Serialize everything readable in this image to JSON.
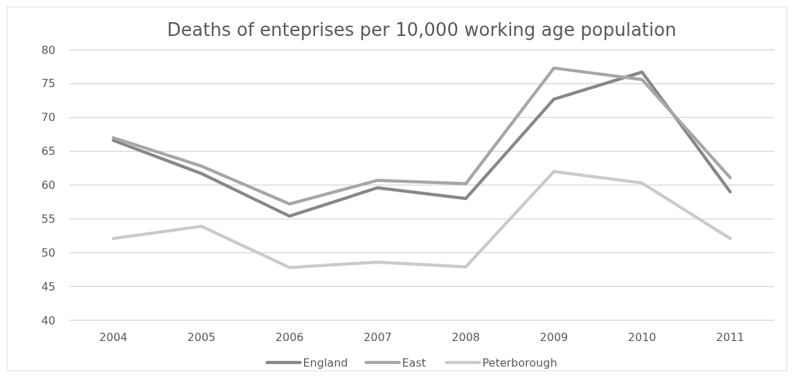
{
  "chart_data": {
    "type": "line",
    "title": "Deaths of enteprises per 10,000 working age population",
    "categories": [
      "2004",
      "2005",
      "2006",
      "2007",
      "2008",
      "2009",
      "2010",
      "2011"
    ],
    "series": [
      {
        "name": "England",
        "color": "#878787",
        "values": [
          66.6,
          61.7,
          55.4,
          59.6,
          58.0,
          72.7,
          76.7,
          59.0
        ]
      },
      {
        "name": "East",
        "color": "#a6a6a6",
        "values": [
          67.0,
          62.8,
          57.2,
          60.7,
          60.2,
          77.3,
          75.6,
          61.1
        ]
      },
      {
        "name": "Peterborough",
        "color": "#cacaca",
        "values": [
          52.1,
          53.9,
          47.8,
          48.6,
          47.9,
          62.0,
          60.3,
          52.1
        ]
      }
    ],
    "ylim": [
      40,
      80
    ],
    "yticks": [
      40,
      45,
      50,
      55,
      60,
      65,
      70,
      75,
      80
    ],
    "grid": "y",
    "legend": "bottom",
    "marker": "none",
    "line_style": "solid"
  }
}
